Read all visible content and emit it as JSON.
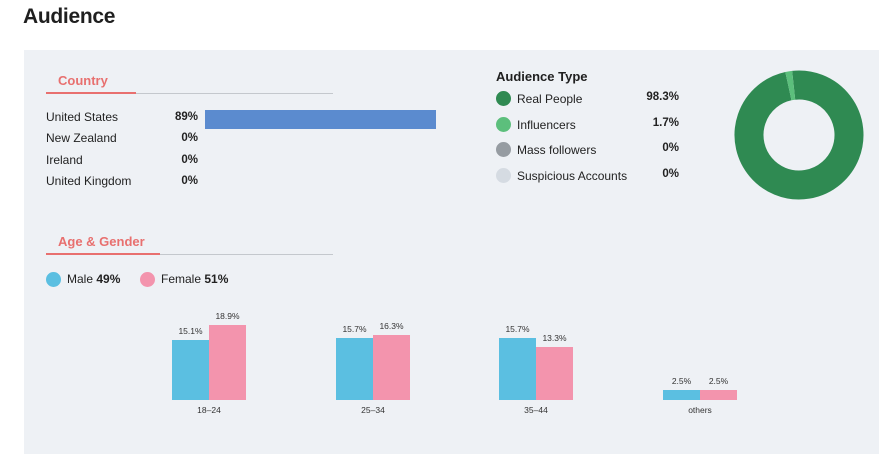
{
  "page": {
    "title": "Audience"
  },
  "country": {
    "title": "Country",
    "items": [
      {
        "name": "United States",
        "pct": "89%",
        "value": 89
      },
      {
        "name": "New Zealand",
        "pct": "0%",
        "value": 0
      },
      {
        "name": "Ireland",
        "pct": "0%",
        "value": 0
      },
      {
        "name": "United Kingdom",
        "pct": "0%",
        "value": 0
      }
    ]
  },
  "audience_type": {
    "title": "Audience Type",
    "items": [
      {
        "label": "Real People",
        "pct": "98.3%",
        "value": 98.3,
        "color": "#2f8a52"
      },
      {
        "label": "Influencers",
        "pct": "1.7%",
        "value": 1.7,
        "color": "#5cbf7c"
      },
      {
        "label": "Mass followers",
        "pct": "0%",
        "value": 0,
        "color": "#969ca2"
      },
      {
        "label": "Suspicious Accounts",
        "pct": "0%",
        "value": 0,
        "color": "#d5dbe2"
      }
    ]
  },
  "age_gender": {
    "title": "Age & Gender",
    "male_label": "Male",
    "male_pct": "49%",
    "female_label": "Female",
    "female_pct": "51%"
  },
  "colors": {
    "accent": "#e8706f",
    "country_bar": "#5b8bcf",
    "male": "#5bbfe1",
    "female": "#f394ad"
  },
  "chart_data": [
    {
      "type": "bar",
      "title": "Country",
      "categories": [
        "United States",
        "New Zealand",
        "Ireland",
        "United Kingdom"
      ],
      "values": [
        89,
        0,
        0,
        0
      ],
      "value_labels": [
        "89%",
        "0%",
        "0%",
        "0%"
      ],
      "orientation": "horizontal"
    },
    {
      "type": "pie",
      "title": "Audience Type",
      "categories": [
        "Real People",
        "Influencers",
        "Mass followers",
        "Suspicious Accounts"
      ],
      "values": [
        98.3,
        1.7,
        0,
        0
      ],
      "donut": true
    },
    {
      "type": "bar",
      "title": "Age & Gender",
      "categories": [
        "18–24",
        "25–34",
        "35–44",
        "others"
      ],
      "series": [
        {
          "name": "Male",
          "values": [
            15.1,
            15.7,
            15.7,
            2.5
          ],
          "labels": [
            "15.1%",
            "15.7%",
            "15.7%",
            "2.5%"
          ]
        },
        {
          "name": "Female",
          "values": [
            18.9,
            16.3,
            13.3,
            2.5
          ],
          "labels": [
            "18.9%",
            "16.3%",
            "13.3%",
            "2.5%"
          ]
        }
      ],
      "xlabel": "",
      "ylabel": "",
      "ylim": [
        0,
        20
      ]
    }
  ]
}
